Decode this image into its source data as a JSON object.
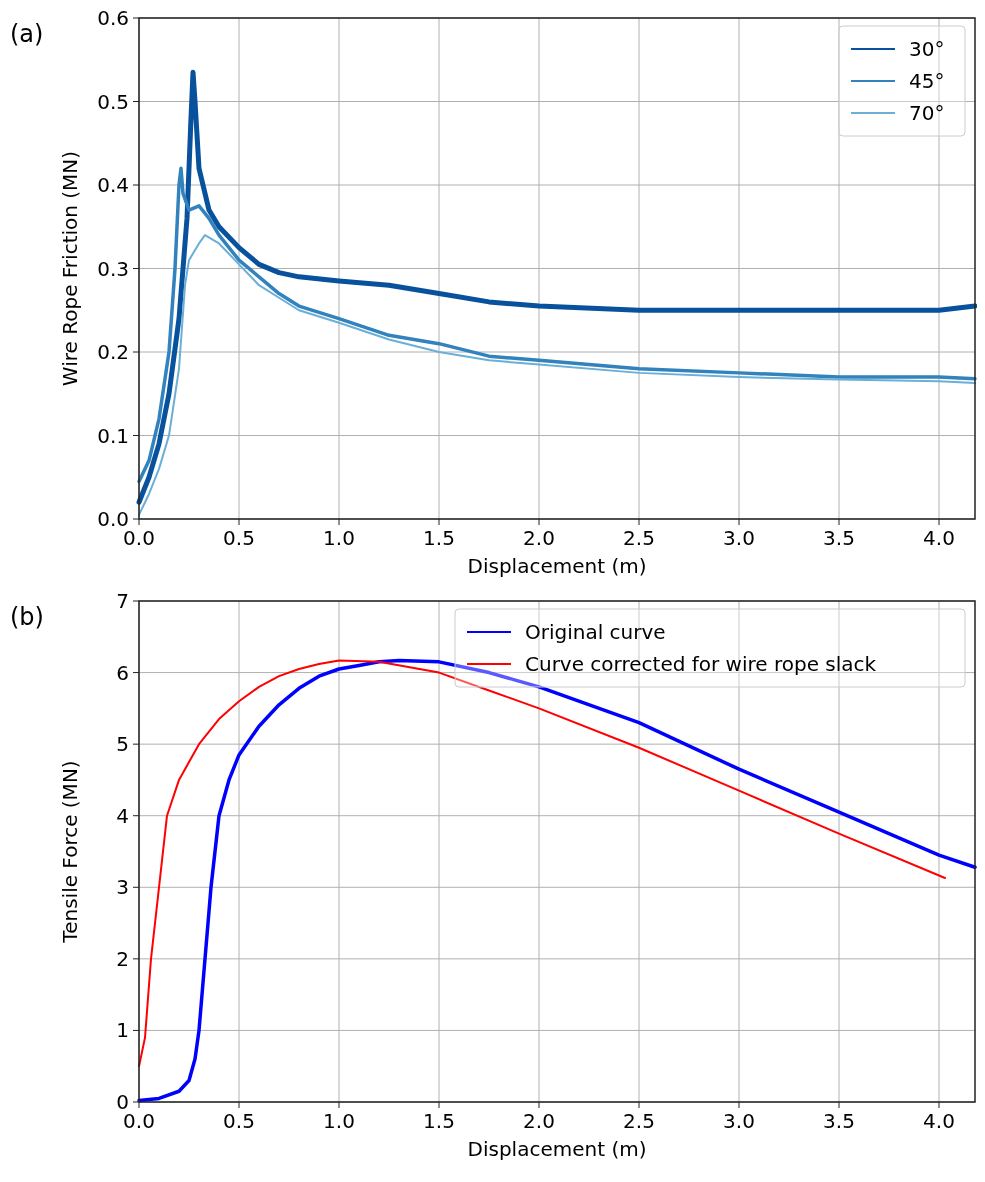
{
  "chart_data": [
    {
      "type": "line",
      "annotations": [
        "(a)"
      ],
      "xlabel": "Displacement (m)",
      "ylabel": "Wire Rope Friction (MN)",
      "xlim": [
        0,
        4.18
      ],
      "xticks": [
        {
          "value": 0,
          "label": "0.0"
        },
        0.5,
        {
          "value": 1,
          "label": "1.0"
        },
        1.5,
        {
          "value": 2,
          "label": "2.0"
        },
        2.5,
        {
          "value": 3,
          "label": "3.0"
        },
        3.5,
        {
          "value": 4,
          "label": "4.0"
        }
      ],
      "ylim": [
        0,
        0.6
      ],
      "yticks": [
        {
          "value": 0,
          "label": "0.0"
        },
        0.1,
        0.2,
        0.3,
        0.4,
        0.5,
        0.6
      ],
      "grid": true,
      "legend": "top right",
      "series": [
        {
          "name": "30°",
          "color": "#08519c",
          "x": [
            0,
            0.05,
            0.1,
            0.15,
            0.2,
            0.24,
            0.26,
            0.27,
            0.28,
            0.3,
            0.35,
            0.4,
            0.5,
            0.6,
            0.7,
            0.8,
            1.0,
            1.25,
            1.5,
            1.75,
            2.0,
            2.5,
            3.0,
            3.5,
            4.0,
            4.18
          ],
          "values": [
            0.02,
            0.05,
            0.09,
            0.15,
            0.24,
            0.36,
            0.48,
            0.535,
            0.5,
            0.42,
            0.37,
            0.35,
            0.325,
            0.305,
            0.295,
            0.29,
            0.285,
            0.28,
            0.27,
            0.26,
            0.255,
            0.25,
            0.25,
            0.25,
            0.25,
            0.255
          ]
        },
        {
          "name": "45°",
          "color": "#3182bd",
          "x": [
            0,
            0.05,
            0.1,
            0.15,
            0.18,
            0.2,
            0.21,
            0.22,
            0.25,
            0.3,
            0.35,
            0.4,
            0.5,
            0.6,
            0.7,
            0.8,
            1.0,
            1.25,
            1.5,
            1.75,
            2.0,
            2.5,
            3.0,
            3.5,
            4.0,
            4.18
          ],
          "values": [
            0.045,
            0.07,
            0.12,
            0.2,
            0.3,
            0.4,
            0.42,
            0.39,
            0.37,
            0.375,
            0.36,
            0.34,
            0.31,
            0.29,
            0.27,
            0.255,
            0.24,
            0.22,
            0.21,
            0.195,
            0.19,
            0.18,
            0.175,
            0.17,
            0.17,
            0.168
          ]
        },
        {
          "name": "70°",
          "color": "#6baed6",
          "x": [
            0,
            0.05,
            0.1,
            0.15,
            0.2,
            0.23,
            0.25,
            0.3,
            0.33,
            0.4,
            0.5,
            0.6,
            0.7,
            0.8,
            1.0,
            1.25,
            1.5,
            1.75,
            2.0,
            2.5,
            3.0,
            3.5,
            4.0,
            4.18
          ],
          "values": [
            0.005,
            0.03,
            0.06,
            0.1,
            0.18,
            0.28,
            0.31,
            0.33,
            0.34,
            0.33,
            0.305,
            0.28,
            0.265,
            0.25,
            0.235,
            0.215,
            0.2,
            0.19,
            0.185,
            0.175,
            0.17,
            0.167,
            0.165,
            0.163
          ]
        }
      ]
    },
    {
      "type": "line",
      "annotations": [
        "(b)"
      ],
      "xlabel": "Displacement (m)",
      "ylabel": "Tensile Force (MN)",
      "xlim": [
        0,
        4.18
      ],
      "xticks": [
        {
          "value": 0,
          "label": "0.0"
        },
        0.5,
        {
          "value": 1,
          "label": "1.0"
        },
        1.5,
        {
          "value": 2,
          "label": "2.0"
        },
        2.5,
        {
          "value": 3,
          "label": "3.0"
        },
        3.5,
        {
          "value": 4,
          "label": "4.0"
        }
      ],
      "ylim": [
        0,
        7
      ],
      "yticks": [
        0,
        1,
        2,
        3,
        4,
        5,
        6,
        7
      ],
      "grid": true,
      "legend": "top right",
      "series": [
        {
          "name": "Original curve",
          "color": "#0000ff",
          "x": [
            0,
            0.1,
            0.2,
            0.25,
            0.28,
            0.3,
            0.33,
            0.36,
            0.4,
            0.45,
            0.5,
            0.6,
            0.7,
            0.8,
            0.9,
            1.0,
            1.1,
            1.2,
            1.3,
            1.5,
            1.75,
            2.0,
            2.5,
            3.0,
            3.5,
            4.0,
            4.18
          ],
          "values": [
            0.02,
            0.05,
            0.15,
            0.3,
            0.6,
            1.0,
            2,
            3,
            4.0,
            4.5,
            4.85,
            5.25,
            5.55,
            5.78,
            5.95,
            6.05,
            6.1,
            6.15,
            6.17,
            6.15,
            6.0,
            5.8,
            5.3,
            4.65,
            4.05,
            3.45,
            3.28
          ]
        },
        {
          "name": "Curve corrected for wire rope slack",
          "color": "#ff0000",
          "x": [
            0,
            0.03,
            0.06,
            0.1,
            0.14,
            0.2,
            0.3,
            0.4,
            0.5,
            0.6,
            0.7,
            0.8,
            0.9,
            1.0,
            1.2,
            1.5,
            1.75,
            2.0,
            2.5,
            3.0,
            3.5,
            4.03
          ],
          "values": [
            0.5,
            0.9,
            2.0,
            3.0,
            4.0,
            4.5,
            5.0,
            5.35,
            5.6,
            5.8,
            5.95,
            6.05,
            6.12,
            6.17,
            6.15,
            6.0,
            5.75,
            5.5,
            4.95,
            4.35,
            3.75,
            3.13
          ]
        }
      ]
    }
  ]
}
